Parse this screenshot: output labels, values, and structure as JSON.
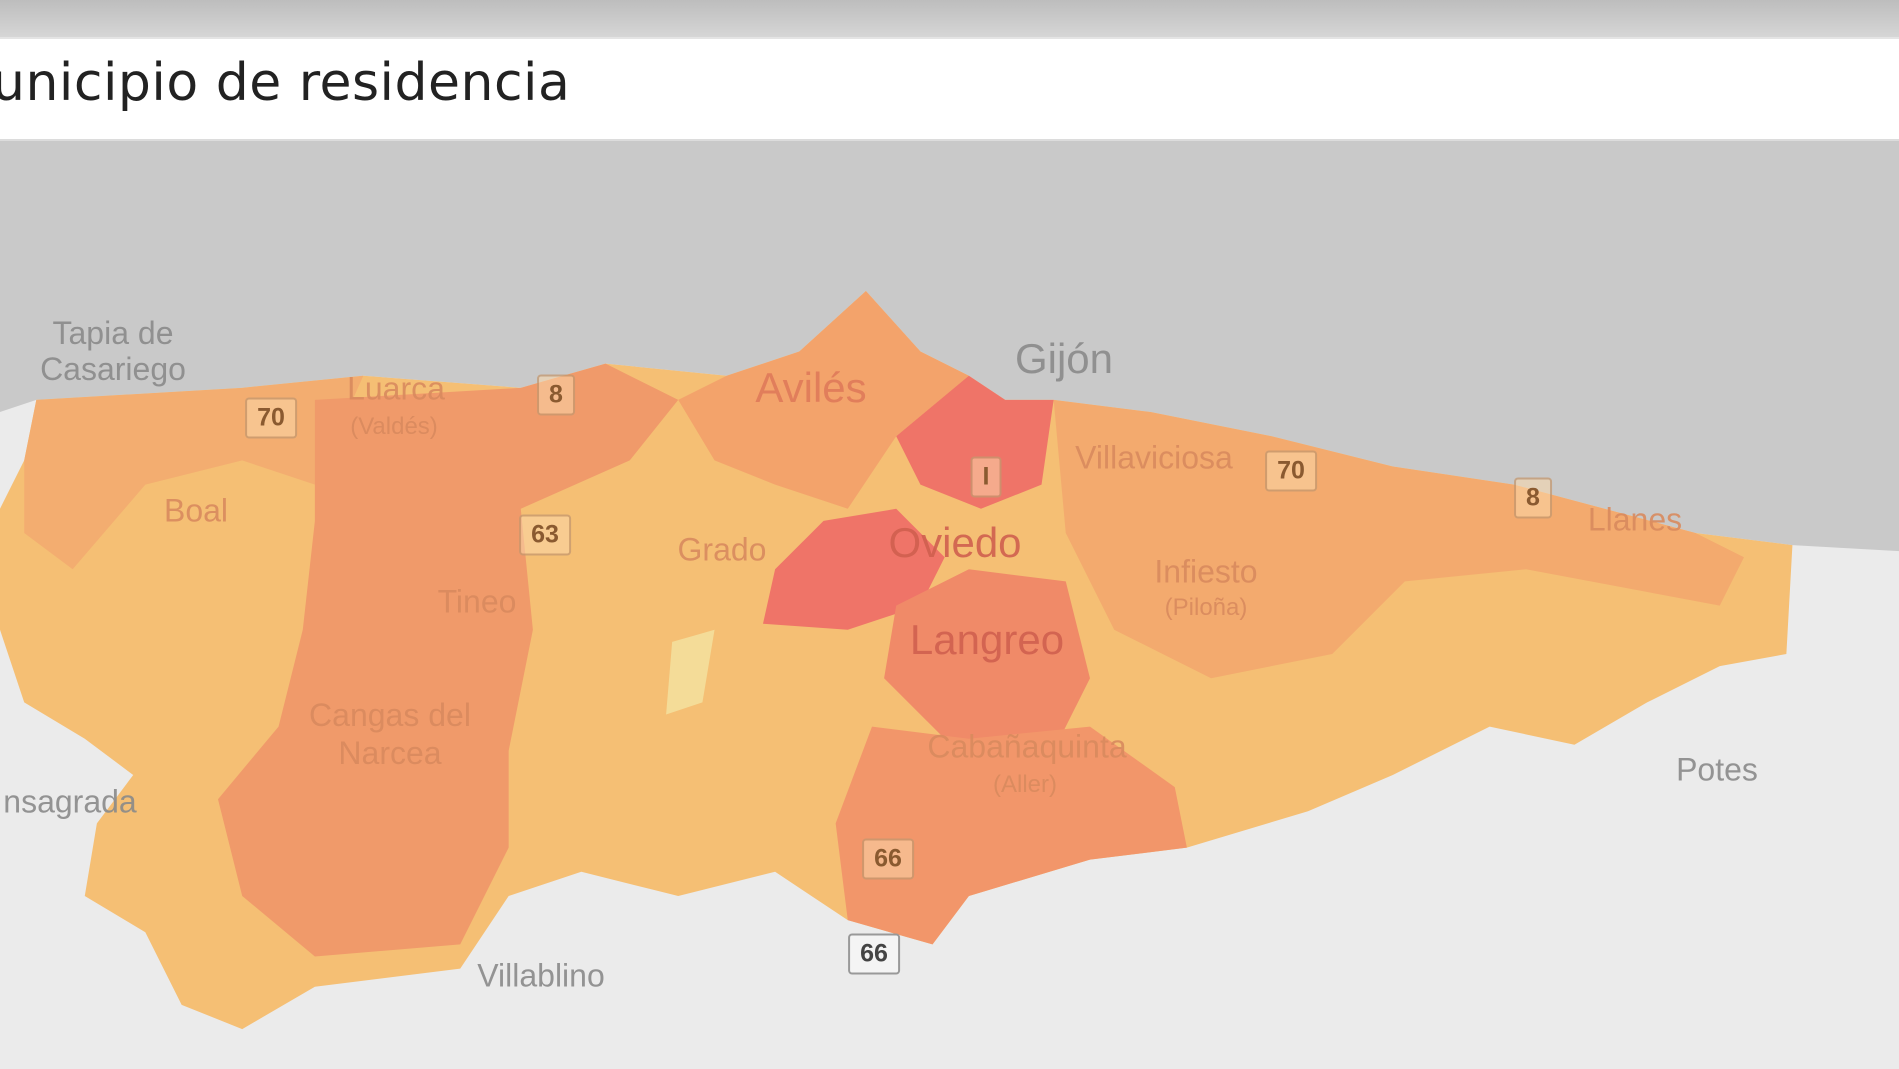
{
  "header": {
    "title": "unicipio de residencia"
  },
  "map": {
    "colors": {
      "sea": "#c9c9c9",
      "land": "#ebebeb",
      "high": "#ef7468",
      "mid_high": "#f09a6a",
      "mid": "#f2a96b",
      "low": "#f5bf74",
      "lowest": "#f4dc98"
    },
    "places": [
      {
        "id": "tapia-de-casariego",
        "text1": "Tapia de",
        "text2": "Casariego"
      },
      {
        "id": "luarca",
        "text": "Luarca",
        "sub": "(Valdés)"
      },
      {
        "id": "boal",
        "text": "Boal"
      },
      {
        "id": "tineo",
        "text": "Tineo"
      },
      {
        "id": "cangas-del-narcea",
        "text1": "Cangas del",
        "text2": "Narcea"
      },
      {
        "id": "fonsagrada",
        "text": "nsagrada"
      },
      {
        "id": "villablino",
        "text": "Villablino"
      },
      {
        "id": "grado",
        "text": "Grado"
      },
      {
        "id": "aviles",
        "text": "Avilés"
      },
      {
        "id": "gijon",
        "text": "Gijón"
      },
      {
        "id": "villaviciosa",
        "text": "Villaviciosa"
      },
      {
        "id": "oviedo",
        "text": "Oviedo"
      },
      {
        "id": "langreo",
        "text": "Langreo"
      },
      {
        "id": "infiesto",
        "text": "Infiesto",
        "sub": "(Piloña)"
      },
      {
        "id": "cabanaquinta",
        "text": "Cabañaquinta",
        "sub": "(Aller)"
      },
      {
        "id": "llanes",
        "text": "Llanes"
      },
      {
        "id": "potes",
        "text": "Potes"
      }
    ],
    "roads": [
      "70",
      "8",
      "63",
      "I",
      "70",
      "8",
      "66",
      "66"
    ]
  }
}
